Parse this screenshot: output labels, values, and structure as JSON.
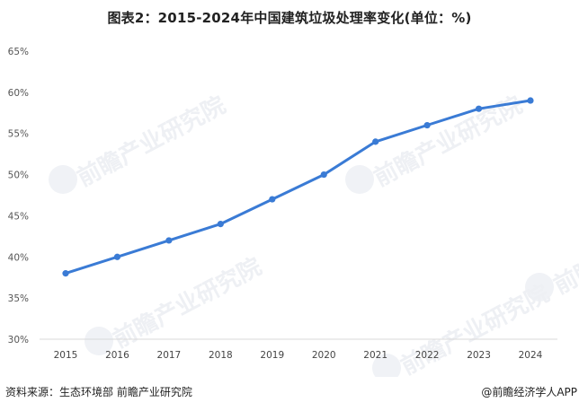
{
  "title": "图表2：2015-2024年中国建筑垃圾处理率变化(单位：%)",
  "footer": {
    "source": "资料来源：生态环境部 前瞻产业研究院",
    "credit": "@前瞻经济学人APP"
  },
  "watermark": "前瞻产业研究院",
  "colors": {
    "line": "#3a7bd5",
    "axis": "#d9d9d9",
    "text": "#555555"
  },
  "chart_data": {
    "type": "line",
    "title": "图表2：2015-2024年中国建筑垃圾处理率变化(单位：%)",
    "xlabel": "",
    "ylabel": "",
    "categories": [
      "2015",
      "2016",
      "2017",
      "2018",
      "2019",
      "2020",
      "2021",
      "2022",
      "2023",
      "2024"
    ],
    "series": [
      {
        "name": "建筑垃圾处理率",
        "values": [
          38,
          40,
          42,
          44,
          47,
          50,
          54,
          56,
          58,
          59
        ]
      }
    ],
    "ylim": [
      30,
      65
    ],
    "yticks": [
      "30%",
      "35%",
      "40%",
      "45%",
      "50%",
      "55%",
      "60%",
      "65%"
    ],
    "grid": false,
    "legend": "none"
  }
}
